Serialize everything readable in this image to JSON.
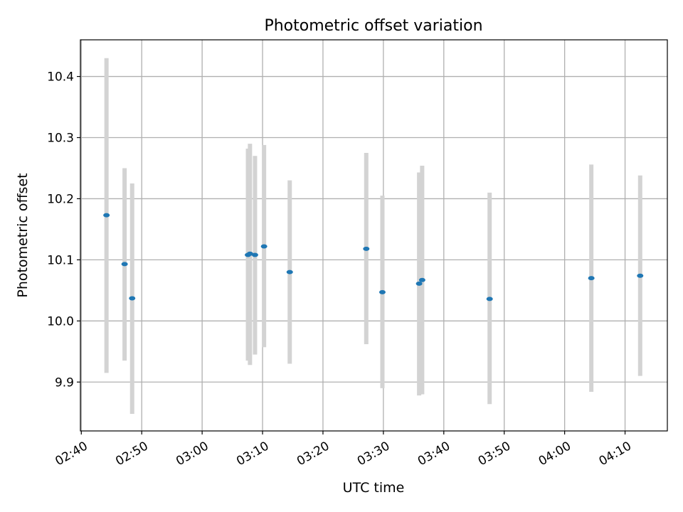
{
  "chart_data": {
    "type": "scatter",
    "title": "Photometric offset variation",
    "xlabel": "UTC time",
    "ylabel": "Photometric offset",
    "xlim": [
      "02:40",
      "04:17"
    ],
    "ylim": [
      9.82,
      10.46
    ],
    "x_ticks": [
      "02:40",
      "02:50",
      "03:00",
      "03:10",
      "03:20",
      "03:30",
      "03:40",
      "03:50",
      "04:00",
      "04:10"
    ],
    "y_ticks": [
      "9.9",
      "10.0",
      "10.1",
      "10.2",
      "10.3",
      "10.4"
    ],
    "grid": true,
    "colors": {
      "point": "#1f77b4",
      "errorbar": "#d3d3d3",
      "grid": "#b0b0b0"
    },
    "points": [
      {
        "x": "02:44:10",
        "y": 10.173,
        "ylow": 9.915,
        "yhigh": 10.43
      },
      {
        "x": "02:47:10",
        "y": 10.093,
        "ylow": 9.935,
        "yhigh": 10.25
      },
      {
        "x": "02:48:25",
        "y": 10.037,
        "ylow": 9.848,
        "yhigh": 10.225
      },
      {
        "x": "03:07:35",
        "y": 10.108,
        "ylow": 9.935,
        "yhigh": 10.282
      },
      {
        "x": "03:07:55",
        "y": 10.11,
        "ylow": 9.928,
        "yhigh": 10.29
      },
      {
        "x": "03:08:45",
        "y": 10.108,
        "ylow": 9.945,
        "yhigh": 10.27
      },
      {
        "x": "03:10:15",
        "y": 10.122,
        "ylow": 9.957,
        "yhigh": 10.288
      },
      {
        "x": "03:14:30",
        "y": 10.08,
        "ylow": 9.93,
        "yhigh": 10.23
      },
      {
        "x": "03:27:10",
        "y": 10.118,
        "ylow": 9.962,
        "yhigh": 10.275
      },
      {
        "x": "03:29:50",
        "y": 10.047,
        "ylow": 9.89,
        "yhigh": 10.205
      },
      {
        "x": "03:35:55",
        "y": 10.061,
        "ylow": 9.878,
        "yhigh": 10.243
      },
      {
        "x": "03:36:25",
        "y": 10.067,
        "ylow": 9.88,
        "yhigh": 10.254
      },
      {
        "x": "03:47:35",
        "y": 10.036,
        "ylow": 9.864,
        "yhigh": 10.21
      },
      {
        "x": "04:04:25",
        "y": 10.07,
        "ylow": 9.884,
        "yhigh": 10.256
      },
      {
        "x": "04:12:30",
        "y": 10.074,
        "ylow": 9.91,
        "yhigh": 10.238
      }
    ]
  }
}
